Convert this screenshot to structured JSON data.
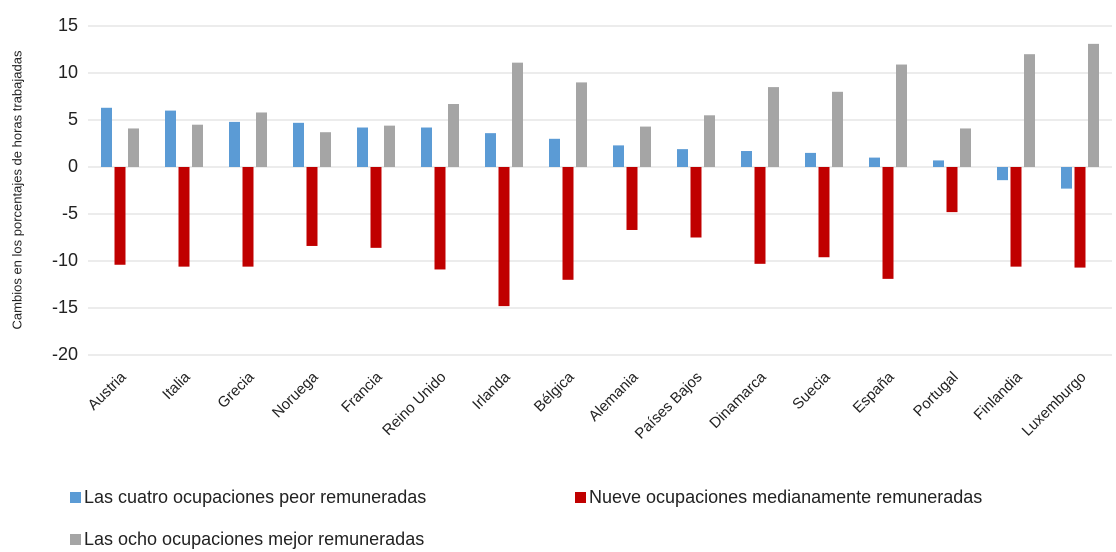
{
  "chart_data": {
    "type": "bar",
    "ylabel": "Cambios en los porcentajes de horas trabajadas",
    "categories": [
      "Austria",
      "Italia",
      "Grecia",
      "Noruega",
      "Francia",
      "Reino Unido",
      "Irlanda",
      "Bélgica",
      "Alemania",
      "Países Bajos",
      "Dinamarca",
      "Suecia",
      "España",
      "Portugal",
      "Finlandia",
      "Luxemburgo"
    ],
    "series": [
      {
        "name": "Las cuatro ocupaciones peor remuneradas",
        "color": "#5b9bd5",
        "values": [
          6.3,
          6.0,
          4.8,
          4.7,
          4.2,
          4.2,
          3.6,
          3.0,
          2.3,
          1.9,
          1.7,
          1.5,
          1.0,
          0.7,
          -1.4,
          -2.3
        ]
      },
      {
        "name": "Nueve ocupaciones medianamente remuneradas",
        "color": "#c00000",
        "values": [
          -10.4,
          -10.6,
          -10.6,
          -8.4,
          -8.6,
          -10.9,
          -14.8,
          -12.0,
          -6.7,
          -7.5,
          -10.3,
          -9.6,
          -11.9,
          -4.8,
          -10.6,
          -10.7
        ]
      },
      {
        "name": "Las ocho ocupaciones mejor remuneradas",
        "color": "#a5a5a5",
        "values": [
          4.1,
          4.5,
          5.8,
          3.7,
          4.4,
          6.7,
          11.1,
          9.0,
          4.3,
          5.5,
          8.5,
          8.0,
          10.9,
          4.1,
          12.0,
          13.1
        ]
      }
    ],
    "ylim": [
      -20,
      15
    ],
    "yticks": [
      -20,
      -15,
      -10,
      -5,
      0,
      5,
      10,
      15
    ],
    "grid": true
  }
}
